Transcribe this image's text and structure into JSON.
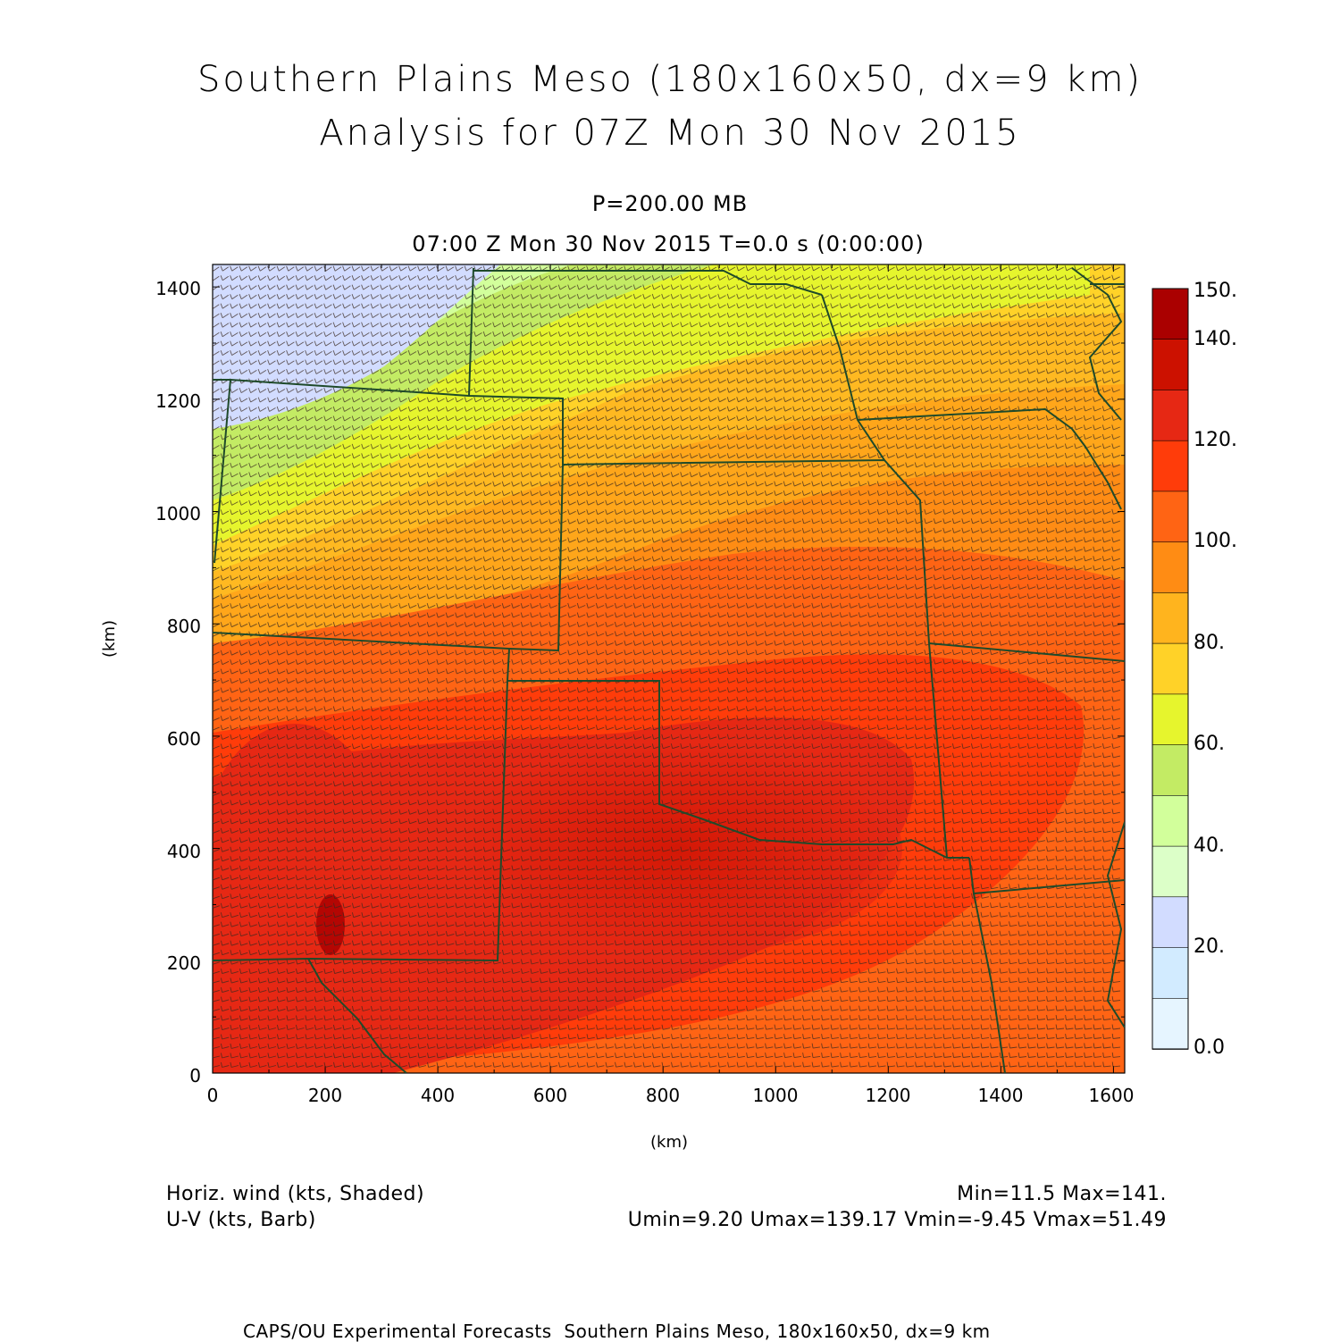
{
  "title": {
    "line1": "Southern Plains Meso (180x160x50, dx=9 km)",
    "line2": "Analysis for 07Z Mon 30 Nov 2015"
  },
  "subtitle": {
    "level": "P=200.00 MB",
    "time": "07:00 Z Mon 30 Nov 2015    T=0.0 s (0:00:00)"
  },
  "axes": {
    "xlabel": "(km)",
    "ylabel": "(km)",
    "xticks": [
      "0",
      "200",
      "400",
      "600",
      "800",
      "1000",
      "1200",
      "1400",
      "1600"
    ],
    "yticks": [
      "0",
      "200",
      "400",
      "600",
      "800",
      "1000",
      "1200",
      "1400"
    ],
    "xlim": [
      0,
      1620
    ],
    "ylim": [
      0,
      1440
    ]
  },
  "colorbar": {
    "labels": [
      "150.",
      "140.",
      "120.",
      "100.",
      "80.",
      "60.",
      "40.",
      "20.",
      "0.0"
    ],
    "colors": [
      "#aa0000",
      "#cc1100",
      "#e62814",
      "#ff3c0a",
      "#ff6414",
      "#ff8c14",
      "#ffb41e",
      "#ffd228",
      "#e6f52d",
      "#c3eb64",
      "#d2ff9b",
      "#dcffc8",
      "#d2dcff",
      "#d2ebff",
      "#e6f5ff"
    ]
  },
  "legend": {
    "field1": "Horiz. wind (kts, Shaded)",
    "field2": "U-V (kts, Barb)",
    "stats1": "Min=11.5 Max=141.",
    "stats2": "Umin=9.20 Umax=139.17 Vmin=-9.45 Vmax=51.49"
  },
  "footer": "CAPS/OU Experimental Forecasts  Southern Plains Meso, 180x160x50, dx=9 km"
}
